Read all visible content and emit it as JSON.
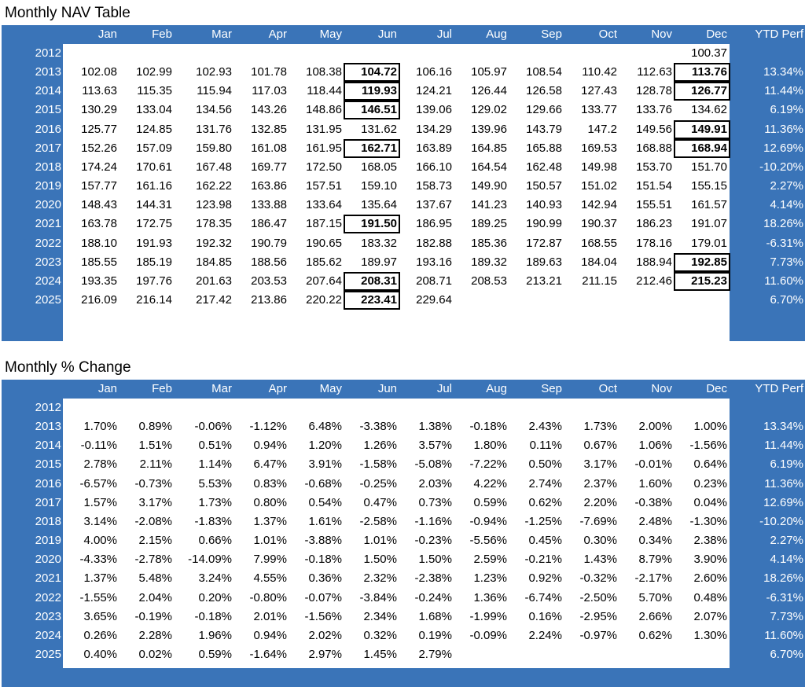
{
  "nav_title": "Monthly NAV Table",
  "pct_title": "Monthly % Change",
  "columns": [
    "Jan",
    "Feb",
    "Mar",
    "Apr",
    "May",
    "Jun",
    "Jul",
    "Aug",
    "Sep",
    "Oct",
    "Nov",
    "Dec",
    "YTD Perf"
  ],
  "nav_rows": [
    {
      "year": "2012",
      "cells": [
        "",
        "",
        "",
        "",
        "",
        "",
        "",
        "",
        "",
        "",
        "",
        "100.37"
      ],
      "ytd": "",
      "highlight": []
    },
    {
      "year": "2013",
      "cells": [
        "102.08",
        "102.99",
        "102.93",
        "101.78",
        "108.38",
        "104.72",
        "106.16",
        "105.97",
        "108.54",
        "110.42",
        "112.63",
        "113.76"
      ],
      "ytd": "13.34%",
      "highlight": [
        5,
        11
      ]
    },
    {
      "year": "2014",
      "cells": [
        "113.63",
        "115.35",
        "115.94",
        "117.03",
        "118.44",
        "119.93",
        "124.21",
        "126.44",
        "126.58",
        "127.43",
        "128.78",
        "126.77"
      ],
      "ytd": "11.44%",
      "highlight": [
        5,
        11
      ]
    },
    {
      "year": "2015",
      "cells": [
        "130.29",
        "133.04",
        "134.56",
        "143.26",
        "148.86",
        "146.51",
        "139.06",
        "129.02",
        "129.66",
        "133.77",
        "133.76",
        "134.62"
      ],
      "ytd": "6.19%",
      "highlight": [
        5
      ]
    },
    {
      "year": "2016",
      "cells": [
        "125.77",
        "124.85",
        "131.76",
        "132.85",
        "131.95",
        "131.62",
        "134.29",
        "139.96",
        "143.79",
        "147.2",
        "149.56",
        "149.91"
      ],
      "ytd": "11.36%",
      "highlight": [
        11
      ]
    },
    {
      "year": "2017",
      "cells": [
        "152.26",
        "157.09",
        "159.80",
        "161.08",
        "161.95",
        "162.71",
        "163.89",
        "164.85",
        "165.88",
        "169.53",
        "168.88",
        "168.94"
      ],
      "ytd": "12.69%",
      "highlight": [
        5,
        11
      ]
    },
    {
      "year": "2018",
      "cells": [
        "174.24",
        "170.61",
        "167.48",
        "169.77",
        "172.50",
        "168.05",
        "166.10",
        "164.54",
        "162.48",
        "149.98",
        "153.70",
        "151.70"
      ],
      "ytd": "-10.20%",
      "highlight": []
    },
    {
      "year": "2019",
      "cells": [
        "157.77",
        "161.16",
        "162.22",
        "163.86",
        "157.51",
        "159.10",
        "158.73",
        "149.90",
        "150.57",
        "151.02",
        "151.54",
        "155.15"
      ],
      "ytd": "2.27%",
      "highlight": []
    },
    {
      "year": "2020",
      "cells": [
        "148.43",
        "144.31",
        "123.98",
        "133.88",
        "133.64",
        "135.64",
        "137.67",
        "141.23",
        "140.93",
        "142.94",
        "155.51",
        "161.57"
      ],
      "ytd": "4.14%",
      "highlight": []
    },
    {
      "year": "2021",
      "cells": [
        "163.78",
        "172.75",
        "178.35",
        "186.47",
        "187.15",
        "191.50",
        "186.95",
        "189.25",
        "190.99",
        "190.37",
        "186.23",
        "191.07"
      ],
      "ytd": "18.26%",
      "highlight": [
        5
      ]
    },
    {
      "year": "2022",
      "cells": [
        "188.10",
        "191.93",
        "192.32",
        "190.79",
        "190.65",
        "183.32",
        "182.88",
        "185.36",
        "172.87",
        "168.55",
        "178.16",
        "179.01"
      ],
      "ytd": "-6.31%",
      "highlight": []
    },
    {
      "year": "2023",
      "cells": [
        "185.55",
        "185.19",
        "184.85",
        "188.56",
        "185.62",
        "189.97",
        "193.16",
        "189.32",
        "189.63",
        "184.04",
        "188.94",
        "192.85"
      ],
      "ytd": "7.73%",
      "highlight": [
        11
      ]
    },
    {
      "year": "2024",
      "cells": [
        "193.35",
        "197.76",
        "201.63",
        "203.53",
        "207.64",
        "208.31",
        "208.71",
        "208.53",
        "213.21",
        "211.15",
        "212.46",
        "215.23"
      ],
      "ytd": "11.60%",
      "highlight": [
        5,
        11
      ]
    },
    {
      "year": "2025",
      "cells": [
        "216.09",
        "216.14",
        "217.42",
        "213.86",
        "220.22",
        "223.41",
        "229.64",
        "",
        "",
        "",
        "",
        ""
      ],
      "ytd": "6.70%",
      "highlight": [
        5
      ]
    }
  ],
  "pct_rows": [
    {
      "year": "2012",
      "cells": [
        "",
        "",
        "",
        "",
        "",
        "",
        "",
        "",
        "",
        "",
        "",
        ""
      ],
      "ytd": ""
    },
    {
      "year": "2013",
      "cells": [
        "1.70%",
        "0.89%",
        "-0.06%",
        "-1.12%",
        "6.48%",
        "-3.38%",
        "1.38%",
        "-0.18%",
        "2.43%",
        "1.73%",
        "2.00%",
        "1.00%"
      ],
      "ytd": "13.34%"
    },
    {
      "year": "2014",
      "cells": [
        "-0.11%",
        "1.51%",
        "0.51%",
        "0.94%",
        "1.20%",
        "1.26%",
        "3.57%",
        "1.80%",
        "0.11%",
        "0.67%",
        "1.06%",
        "-1.56%"
      ],
      "ytd": "11.44%"
    },
    {
      "year": "2015",
      "cells": [
        "2.78%",
        "2.11%",
        "1.14%",
        "6.47%",
        "3.91%",
        "-1.58%",
        "-5.08%",
        "-7.22%",
        "0.50%",
        "3.17%",
        "-0.01%",
        "0.64%"
      ],
      "ytd": "6.19%"
    },
    {
      "year": "2016",
      "cells": [
        "-6.57%",
        "-0.73%",
        "5.53%",
        "0.83%",
        "-0.68%",
        "-0.25%",
        "2.03%",
        "4.22%",
        "2.74%",
        "2.37%",
        "1.60%",
        "0.23%"
      ],
      "ytd": "11.36%"
    },
    {
      "year": "2017",
      "cells": [
        "1.57%",
        "3.17%",
        "1.73%",
        "0.80%",
        "0.54%",
        "0.47%",
        "0.73%",
        "0.59%",
        "0.62%",
        "2.20%",
        "-0.38%",
        "0.04%"
      ],
      "ytd": "12.69%"
    },
    {
      "year": "2018",
      "cells": [
        "3.14%",
        "-2.08%",
        "-1.83%",
        "1.37%",
        "1.61%",
        "-2.58%",
        "-1.16%",
        "-0.94%",
        "-1.25%",
        "-7.69%",
        "2.48%",
        "-1.30%"
      ],
      "ytd": "-10.20%"
    },
    {
      "year": "2019",
      "cells": [
        "4.00%",
        "2.15%",
        "0.66%",
        "1.01%",
        "-3.88%",
        "1.01%",
        "-0.23%",
        "-5.56%",
        "0.45%",
        "0.30%",
        "0.34%",
        "2.38%"
      ],
      "ytd": "2.27%"
    },
    {
      "year": "2020",
      "cells": [
        "-4.33%",
        "-2.78%",
        "-14.09%",
        "7.99%",
        "-0.18%",
        "1.50%",
        "1.50%",
        "2.59%",
        "-0.21%",
        "1.43%",
        "8.79%",
        "3.90%"
      ],
      "ytd": "4.14%"
    },
    {
      "year": "2021",
      "cells": [
        "1.37%",
        "5.48%",
        "3.24%",
        "4.55%",
        "0.36%",
        "2.32%",
        "-2.38%",
        "1.23%",
        "0.92%",
        "-0.32%",
        "-2.17%",
        "2.60%"
      ],
      "ytd": "18.26%"
    },
    {
      "year": "2022",
      "cells": [
        "-1.55%",
        "2.04%",
        "0.20%",
        "-0.80%",
        "-0.07%",
        "-3.84%",
        "-0.24%",
        "1.36%",
        "-6.74%",
        "-2.50%",
        "5.70%",
        "0.48%"
      ],
      "ytd": "-6.31%"
    },
    {
      "year": "2023",
      "cells": [
        "3.65%",
        "-0.19%",
        "-0.18%",
        "2.01%",
        "-1.56%",
        "2.34%",
        "1.68%",
        "-1.99%",
        "0.16%",
        "-2.95%",
        "2.66%",
        "2.07%"
      ],
      "ytd": "7.73%"
    },
    {
      "year": "2024",
      "cells": [
        "0.26%",
        "2.28%",
        "1.96%",
        "0.94%",
        "2.02%",
        "0.32%",
        "0.19%",
        "-0.09%",
        "2.24%",
        "-0.97%",
        "0.62%",
        "1.30%"
      ],
      "ytd": "11.60%"
    },
    {
      "year": "2025",
      "cells": [
        "0.40%",
        "0.02%",
        "0.59%",
        "-1.64%",
        "2.97%",
        "1.45%",
        "2.79%",
        "",
        "",
        "",
        "",
        ""
      ],
      "ytd": "6.70%"
    }
  ],
  "colors": {
    "header_blue": "#3a74b8",
    "highlight_border": "#000000"
  }
}
